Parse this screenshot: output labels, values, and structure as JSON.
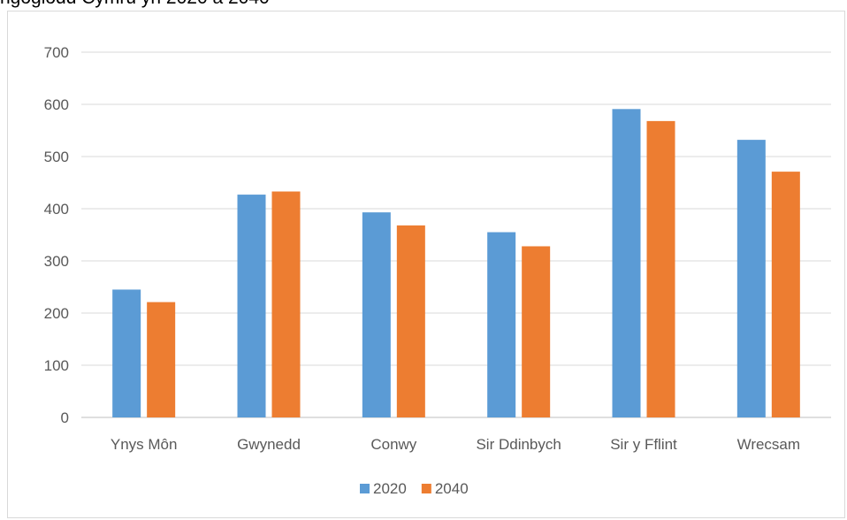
{
  "chart_data": {
    "type": "bar",
    "title": "ngoglodd Cymru yn 2020 a 2040",
    "categories": [
      "Ynys Môn",
      "Gwynedd",
      "Conwy",
      "Sir Ddinbych",
      "Sir y Fflint",
      "Wrecsam"
    ],
    "series": [
      {
        "name": "2020",
        "values": [
          245,
          427,
          393,
          355,
          591,
          532
        ],
        "color": "#5b9bd5"
      },
      {
        "name": "2040",
        "values": [
          221,
          433,
          368,
          328,
          568,
          471
        ],
        "color": "#ed7d31"
      }
    ],
    "ylim": [
      0,
      700
    ],
    "yticks": [
      "0",
      "100",
      "200",
      "300",
      "400",
      "500",
      "600",
      "700"
    ],
    "grid": true,
    "legend": "bottom"
  }
}
